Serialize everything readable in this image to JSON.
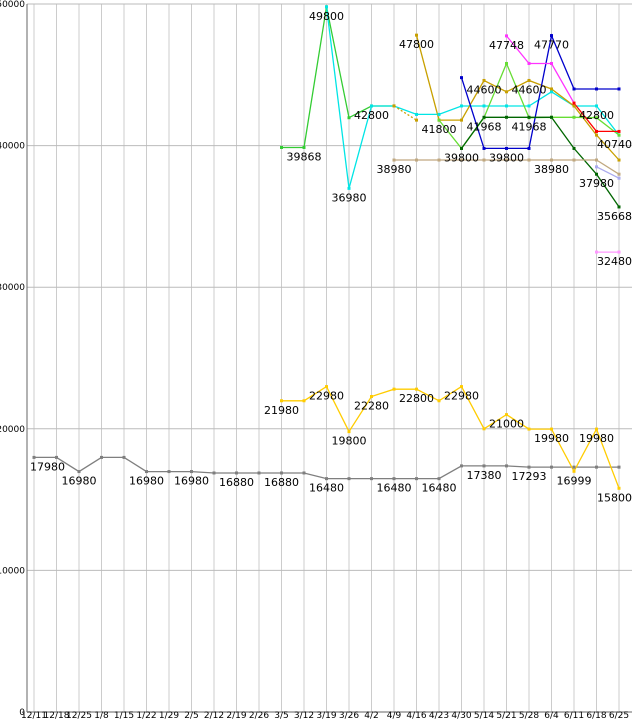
{
  "chart_data": {
    "type": "line",
    "title": "",
    "xlabel": "",
    "ylabel": "",
    "ylim": [
      0,
      50000
    ],
    "yticks": [
      0,
      10000,
      20000,
      30000,
      40000,
      50000
    ],
    "grid": true,
    "legend": "none",
    "x": [
      "12/11",
      "12/18",
      "12/25",
      "1/8",
      "1/15",
      "1/22",
      "1/29",
      "2/5",
      "2/12",
      "2/19",
      "2/26",
      "3/5",
      "3/12",
      "3/19",
      "3/26",
      "4/2",
      "4/9",
      "4/16",
      "4/23",
      "4/30",
      "5/14",
      "5/21",
      "5/28",
      "6/4",
      "6/11",
      "6/18",
      "6/25"
    ],
    "series": [
      {
        "color": "#7f7f7f",
        "dash": false,
        "values": [
          17980,
          17980,
          16980,
          17980,
          17980,
          16980,
          16980,
          16980,
          16880,
          16880,
          16880,
          16880,
          16880,
          16480,
          16480,
          16480,
          16480,
          16480,
          16480,
          17380,
          17380,
          17380,
          17293,
          17293,
          17293,
          17293,
          17293
        ]
      },
      {
        "color": "#ffcc00",
        "dash": false,
        "values": [
          null,
          null,
          null,
          null,
          null,
          null,
          null,
          null,
          null,
          null,
          null,
          21980,
          21980,
          22980,
          19800,
          22280,
          22800,
          22800,
          21980,
          22980,
          20000,
          21000,
          19980,
          19980,
          16999,
          19980,
          15800
        ]
      },
      {
        "color": "#33cc33",
        "dash": false,
        "values": [
          null,
          null,
          null,
          null,
          null,
          null,
          null,
          null,
          null,
          null,
          null,
          39868,
          39868,
          49800,
          41968,
          42800,
          42800,
          null,
          null,
          null,
          null,
          null,
          null,
          null,
          null,
          null,
          null
        ]
      },
      {
        "color": "#00e5e5",
        "dash": false,
        "values": [
          null,
          null,
          null,
          null,
          null,
          null,
          null,
          null,
          null,
          null,
          null,
          null,
          null,
          49800,
          36980,
          42800,
          42800,
          42200,
          42200,
          42800,
          42800,
          42800,
          42800,
          43800,
          42800,
          42800,
          40740
        ]
      },
      {
        "color": "#c8a000",
        "dash": false,
        "values": [
          null,
          null,
          null,
          null,
          null,
          null,
          null,
          null,
          null,
          null,
          null,
          null,
          null,
          null,
          null,
          null,
          null,
          47800,
          41800,
          41800,
          44600,
          43800,
          44600,
          44000,
          42800,
          40740,
          38980
        ]
      },
      {
        "color": "#c8a000",
        "dash": true,
        "values": [
          null,
          null,
          null,
          null,
          null,
          null,
          null,
          null,
          null,
          null,
          null,
          null,
          null,
          null,
          null,
          null,
          42800,
          41800,
          null,
          null,
          null,
          null,
          null,
          null,
          null,
          null,
          null
        ]
      },
      {
        "color": "#66dd33",
        "dash": false,
        "values": [
          null,
          null,
          null,
          null,
          null,
          null,
          null,
          null,
          null,
          null,
          null,
          null,
          null,
          null,
          null,
          null,
          null,
          null,
          41800,
          39800,
          41968,
          45800,
          41968,
          42000,
          42000,
          41968,
          40740
        ]
      },
      {
        "color": "#0000cc",
        "dash": false,
        "values": [
          null,
          null,
          null,
          null,
          null,
          null,
          null,
          null,
          null,
          null,
          null,
          null,
          null,
          null,
          null,
          null,
          null,
          null,
          null,
          44800,
          39800,
          39800,
          39800,
          47770,
          44000,
          44000,
          44000
        ]
      },
      {
        "color": "#ff33ff",
        "dash": false,
        "values": [
          null,
          null,
          null,
          null,
          null,
          null,
          null,
          null,
          null,
          null,
          null,
          null,
          null,
          null,
          null,
          null,
          null,
          null,
          null,
          null,
          null,
          47748,
          45800,
          45800,
          43000,
          null,
          null
        ]
      },
      {
        "color": "#ff0000",
        "dash": false,
        "values": [
          null,
          null,
          null,
          null,
          null,
          null,
          null,
          null,
          null,
          null,
          null,
          null,
          null,
          null,
          null,
          null,
          null,
          null,
          null,
          null,
          null,
          null,
          null,
          null,
          43000,
          41000,
          41000
        ]
      },
      {
        "color": "#006600",
        "dash": false,
        "values": [
          null,
          null,
          null,
          null,
          null,
          null,
          null,
          null,
          null,
          null,
          null,
          null,
          null,
          null,
          null,
          null,
          null,
          null,
          null,
          39800,
          42000,
          42000,
          42000,
          42000,
          39800,
          37980,
          35668
        ]
      },
      {
        "color": "#c0a880",
        "dash": false,
        "values": [
          null,
          null,
          null,
          null,
          null,
          null,
          null,
          null,
          null,
          null,
          null,
          null,
          null,
          null,
          null,
          null,
          38980,
          38980,
          38980,
          38980,
          38980,
          38980,
          38980,
          38980,
          38980,
          38980,
          37980
        ]
      },
      {
        "color": "#aaaaee",
        "dash": false,
        "values": [
          null,
          null,
          null,
          null,
          null,
          null,
          null,
          null,
          null,
          null,
          null,
          null,
          null,
          null,
          null,
          null,
          null,
          null,
          null,
          null,
          null,
          null,
          null,
          null,
          null,
          38500,
          37700
        ]
      },
      {
        "color": "#ff99ff",
        "dash": false,
        "values": [
          null,
          null,
          null,
          null,
          null,
          null,
          null,
          null,
          null,
          null,
          null,
          null,
          null,
          null,
          null,
          null,
          null,
          null,
          null,
          null,
          null,
          null,
          null,
          null,
          null,
          32480,
          32480
        ]
      }
    ],
    "annotations": [
      {
        "text": "17980",
        "x": "12/11",
        "y": 17980
      },
      {
        "text": "16980",
        "x": "12/25",
        "y": 16980
      },
      {
        "text": "16980",
        "x": "1/22",
        "y": 16980
      },
      {
        "text": "16980",
        "x": "2/5",
        "y": 16980
      },
      {
        "text": "16880",
        "x": "2/19",
        "y": 16880
      },
      {
        "text": "16880",
        "x": "3/5",
        "y": 16880
      },
      {
        "text": "16480",
        "x": "3/19",
        "y": 16480
      },
      {
        "text": "16480",
        "x": "4/9",
        "y": 16480
      },
      {
        "text": "16480",
        "x": "4/23",
        "y": 16480
      },
      {
        "text": "17380",
        "x": "5/14",
        "y": 17380
      },
      {
        "text": "17293",
        "x": "5/28",
        "y": 17293
      },
      {
        "text": "16999",
        "x": "6/11",
        "y": 16999
      },
      {
        "text": "15800",
        "x": "6/25",
        "y": 15800
      },
      {
        "text": "21980",
        "x": "3/5",
        "y": 21980
      },
      {
        "text": "22980",
        "x": "3/19",
        "y": 22980
      },
      {
        "text": "19800",
        "x": "3/26",
        "y": 19800
      },
      {
        "text": "22280",
        "x": "4/2",
        "y": 22280
      },
      {
        "text": "22800",
        "x": "4/16",
        "y": 22800
      },
      {
        "text": "22980",
        "x": "4/30",
        "y": 22980
      },
      {
        "text": "21000",
        "x": "5/21",
        "y": 21000
      },
      {
        "text": "19980",
        "x": "6/4",
        "y": 19980
      },
      {
        "text": "19980",
        "x": "6/18",
        "y": 19980
      },
      {
        "text": "39868",
        "x": "3/12",
        "y": 39868
      },
      {
        "text": "49800",
        "x": "3/19",
        "y": 49800
      },
      {
        "text": "42800",
        "x": "4/2",
        "y": 42800
      },
      {
        "text": "36980",
        "x": "3/26",
        "y": 36980
      },
      {
        "text": "38980",
        "x": "4/9",
        "y": 38980
      },
      {
        "text": "47800",
        "x": "4/16",
        "y": 47800
      },
      {
        "text": "41800",
        "x": "4/23",
        "y": 41800
      },
      {
        "text": "39800",
        "x": "4/30",
        "y": 39800
      },
      {
        "text": "44600",
        "x": "5/14",
        "y": 44600
      },
      {
        "text": "41968",
        "x": "5/14",
        "y": 41968
      },
      {
        "text": "39800",
        "x": "5/21",
        "y": 39800
      },
      {
        "text": "47748",
        "x": "5/21",
        "y": 47748
      },
      {
        "text": "44600",
        "x": "5/28",
        "y": 44600
      },
      {
        "text": "41968",
        "x": "5/28",
        "y": 41968
      },
      {
        "text": "47770",
        "x": "6/4",
        "y": 47770
      },
      {
        "text": "38980",
        "x": "6/4",
        "y": 38980
      },
      {
        "text": "42800",
        "x": "6/18",
        "y": 42800
      },
      {
        "text": "40740",
        "x": "6/25",
        "y": 40740
      },
      {
        "text": "37980",
        "x": "6/18",
        "y": 37980
      },
      {
        "text": "35668",
        "x": "6/25",
        "y": 35668
      },
      {
        "text": "32480",
        "x": "6/25",
        "y": 32480
      }
    ]
  }
}
